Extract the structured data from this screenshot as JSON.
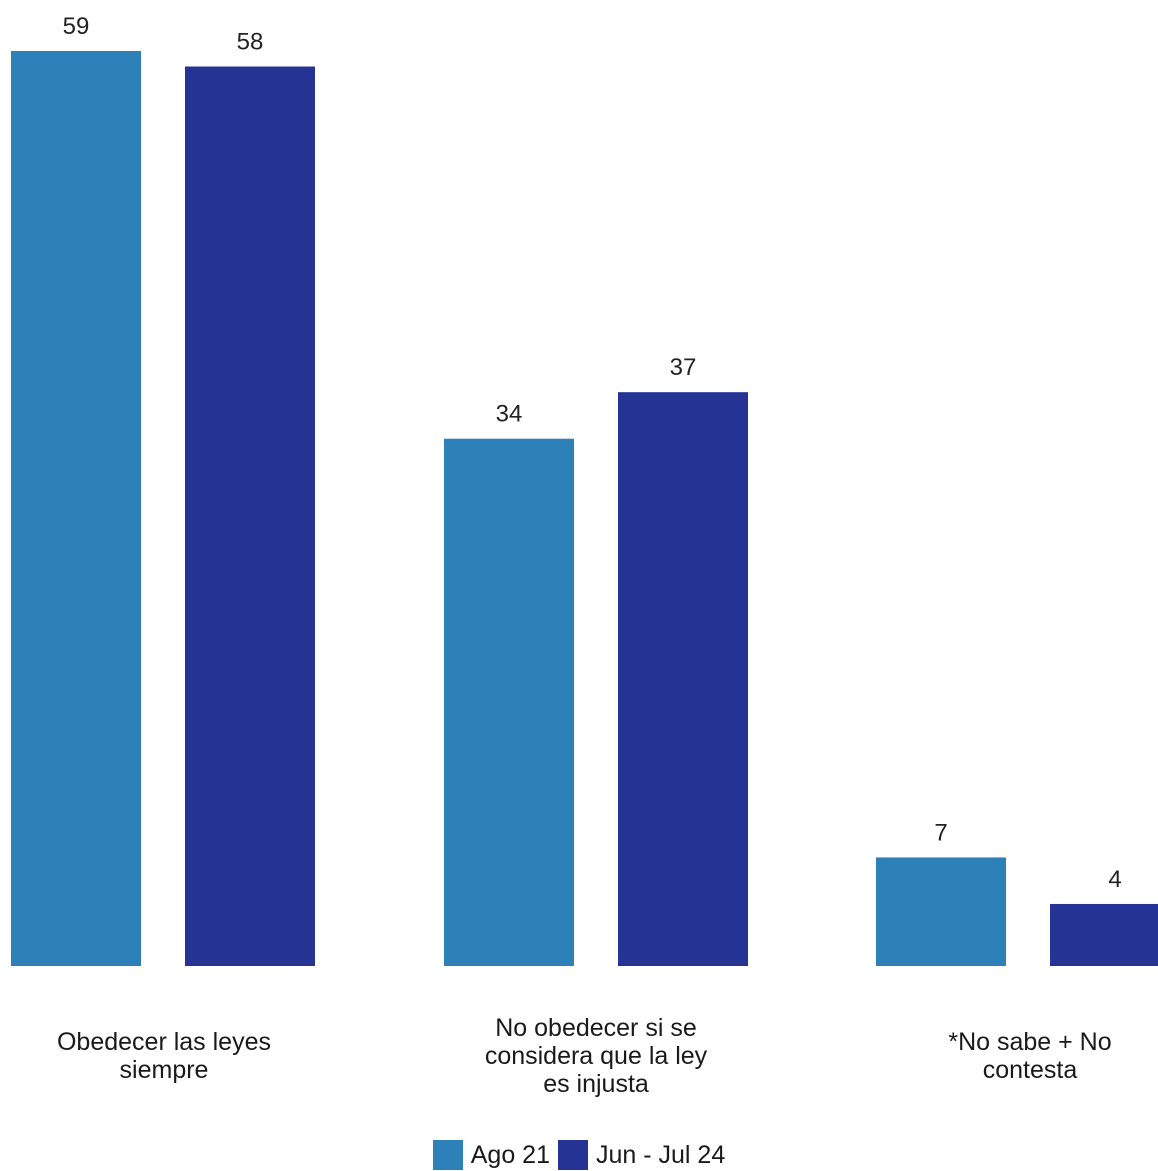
{
  "chart_data": {
    "type": "bar",
    "categories": [
      "Obedecer las leyes\nsiempre",
      "No obedecer si se\nconsidera que la ley\nes injusta",
      "*No sabe + No\ncontesta"
    ],
    "series": [
      {
        "name": "Ago 21",
        "values": [
          59,
          34,
          7
        ],
        "color": "#2e80b8"
      },
      {
        "name": "Jun - Jul 24",
        "values": [
          58,
          37,
          4
        ],
        "color": "#253494"
      }
    ],
    "ylim": [
      0,
      59
    ]
  }
}
